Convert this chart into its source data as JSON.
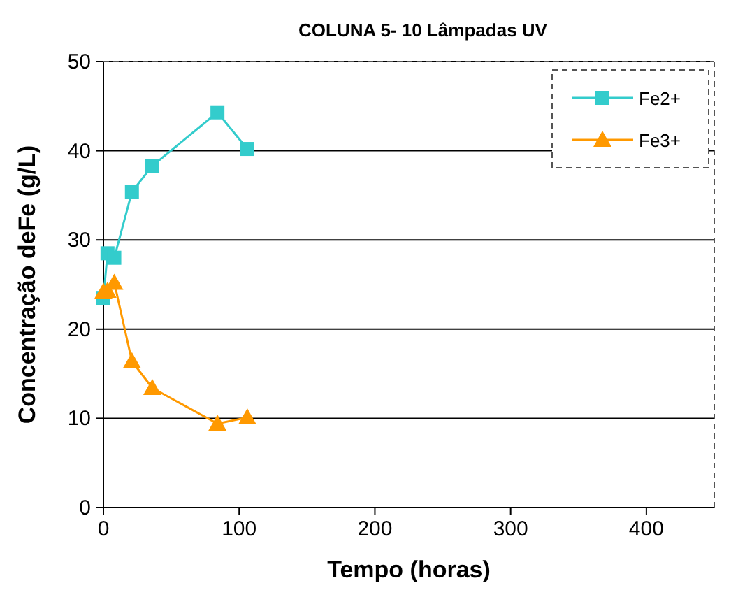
{
  "chart_data": {
    "type": "line",
    "title": "COLUNA 5- 10 Lâmpadas UV",
    "xlabel": "Tempo (horas)",
    "ylabel": "Concentração deFe (g/L)",
    "xlim": [
      0,
      450
    ],
    "xticks": [
      0,
      100,
      200,
      300,
      400
    ],
    "ylim": [
      0,
      50
    ],
    "yticks": [
      0,
      10,
      20,
      30,
      40,
      50
    ],
    "grid": "y",
    "legend": "top right",
    "x": [
      0,
      3,
      8,
      21,
      36,
      84,
      106
    ],
    "series": [
      {
        "name": "Fe2+",
        "color": "#33cccc",
        "marker": "square",
        "values": [
          23.5,
          28.5,
          28,
          35.4,
          38.3,
          44.3,
          40.2
        ]
      },
      {
        "name": "Fe3+",
        "color": "#ff9900",
        "marker": "triangle",
        "values": [
          24.2,
          24.3,
          25.2,
          16.4,
          13.4,
          9.4,
          10.1
        ]
      }
    ]
  }
}
